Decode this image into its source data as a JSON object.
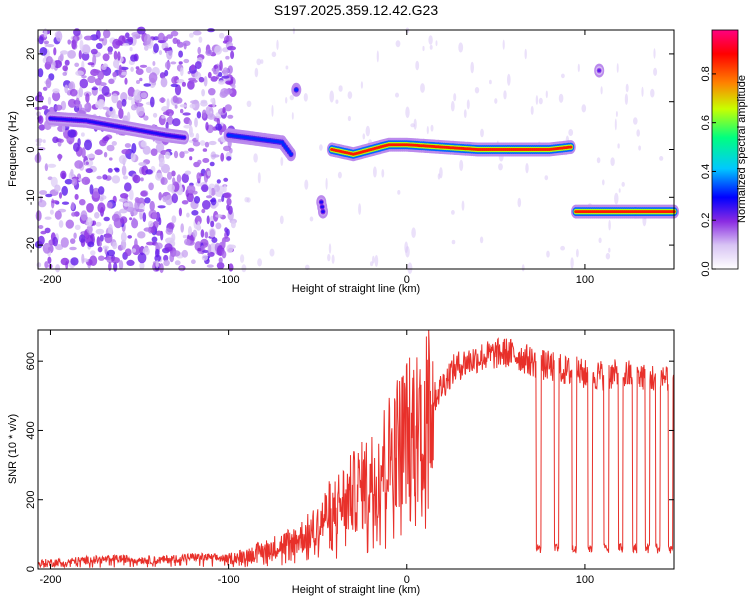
{
  "figure_title": "S197.2025.359.12.42.G23",
  "chart_data": [
    {
      "type": "heatmap",
      "title": "S197.2025.359.12.42.G23",
      "xlabel": "Height of straight line (km)",
      "ylabel": "Frequency (Hz)",
      "xlim": [
        -207,
        150
      ],
      "ylim": [
        -25,
        25
      ],
      "xticks": [
        -200,
        -100,
        0,
        100
      ],
      "yticks": [
        -20,
        -10,
        0,
        10,
        20
      ],
      "colorbar": {
        "label": "Normalized spectral amplitude",
        "range": [
          0.0,
          0.98
        ],
        "ticks": [
          0.0,
          0.2,
          0.4,
          0.6,
          0.8
        ],
        "tick_labels": [
          "0.0",
          "0.2",
          "0.4",
          "0.6",
          "0.8"
        ],
        "colormap": [
          "#ffffff",
          "#d8c4f4",
          "#8a2be2",
          "#0000ff",
          "#00c8ff",
          "#00ff80",
          "#c8ff00",
          "#ff8000",
          "#ff0000",
          "#ff0080"
        ]
      },
      "tracks": [
        {
          "name": "track-1",
          "x": [
            -200,
            -180,
            -165,
            -150,
            -135,
            -125
          ],
          "y": [
            6.5,
            6,
            5,
            4,
            3,
            2.5
          ],
          "amplitude": 0.3
        },
        {
          "name": "track-2",
          "x": [
            -100,
            -90,
            -80,
            -70,
            -65
          ],
          "y": [
            3,
            2.5,
            2,
            1.5,
            -1
          ],
          "amplitude": 0.35
        },
        {
          "name": "track-3",
          "x": [
            -62
          ],
          "y": [
            12.5
          ],
          "amplitude": 0.35
        },
        {
          "name": "track-4",
          "x": [
            -48,
            -47
          ],
          "y": [
            -11,
            -13
          ],
          "amplitude": 0.3
        },
        {
          "name": "track-5",
          "x": [
            -42,
            -30,
            -20,
            -10,
            0,
            20,
            40,
            60,
            80,
            92
          ],
          "y": [
            0,
            -1,
            0,
            1,
            1,
            0.5,
            0,
            0,
            0,
            0.5
          ],
          "amplitude": 0.85
        },
        {
          "name": "track-6",
          "x": [
            95,
            110,
            120,
            130,
            140,
            150
          ],
          "y": [
            -13,
            -13,
            -13,
            -13,
            -13,
            -13
          ],
          "amplitude": 0.85
        },
        {
          "name": "track-7",
          "x": [
            108
          ],
          "y": [
            16.5
          ],
          "amplitude": 0.25
        }
      ],
      "noise": "scattered low-amplitude (0.1–0.3) noise for x < -100, sparse elsewhere"
    },
    {
      "type": "line",
      "xlabel": "Height of straight line (km)",
      "ylabel": "SNR (10 * v/v)",
      "xlim": [
        -207,
        150
      ],
      "ylim": [
        0,
        690
      ],
      "xticks": [
        -200,
        -100,
        0,
        100
      ],
      "yticks": [
        0,
        200,
        400,
        600
      ],
      "series": [
        {
          "name": "SNR",
          "color": "#e8302a",
          "x": [
            -207,
            -200,
            -180,
            -160,
            -140,
            -120,
            -100,
            -90,
            -80,
            -70,
            -60,
            -50,
            -45,
            -40,
            -35,
            -30,
            -25,
            -20,
            -15,
            -10,
            -5,
            0,
            5,
            10,
            15,
            20,
            25,
            30,
            35,
            40,
            45,
            50,
            55,
            60,
            65,
            70,
            75,
            80,
            85,
            90,
            95,
            100,
            110,
            120,
            130,
            140,
            150
          ],
          "values": [
            15,
            18,
            25,
            30,
            25,
            35,
            30,
            40,
            55,
            70,
            90,
            120,
            160,
            180,
            200,
            220,
            240,
            260,
            300,
            330,
            370,
            400,
            420,
            450,
            490,
            530,
            570,
            590,
            600,
            610,
            615,
            620,
            625,
            620,
            610,
            600,
            590,
            585,
            580,
            570,
            570,
            560,
            560,
            560,
            560,
            550,
            560
          ]
        }
      ],
      "dropouts": {
        "x": [
          74,
          84,
          94,
          103,
          112,
          120,
          128,
          135,
          141,
          148
        ],
        "low_value": 60
      }
    }
  ]
}
